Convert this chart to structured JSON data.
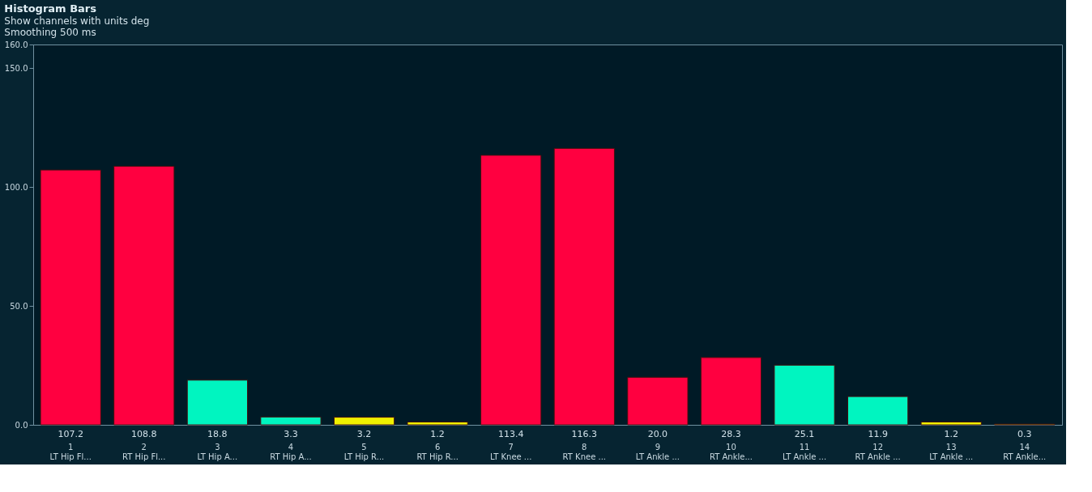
{
  "chart_data": {
    "type": "bar",
    "title": "Histogram Bars",
    "annotations": [
      "Show channels with units deg",
      "Smoothing 500 ms"
    ],
    "categories": [
      "1\nLT Hip Fl...",
      "2\nRT Hip Fl...",
      "3\nLT Hip A...",
      "4\nRT Hip A...",
      "5\nLT Hip R...",
      "6\nRT Hip R...",
      "7\nLT Knee ...",
      "8\nRT Knee ...",
      "9\nLT Ankle ...",
      "10\nRT Ankle...",
      "11\nLT Ankle ...",
      "12\nRT Ankle ...",
      "13\nLT Ankle ...",
      "14\nRT Ankle..."
    ],
    "values": [
      107.2,
      108.8,
      18.8,
      3.3,
      3.2,
      1.2,
      113.4,
      116.3,
      20.0,
      28.3,
      25.1,
      11.9,
      1.2,
      0.3
    ],
    "value_labels": [
      "107.2",
      "108.8",
      "18.8",
      "3.3",
      "3.2",
      "1.2",
      "113.4",
      "116.3",
      "20.0",
      "28.3",
      "25.1",
      "11.9",
      "1.2",
      "0.3"
    ],
    "colors": [
      "#ff0040",
      "#ff0040",
      "#00f5c0",
      "#00f5c0",
      "#f0f000",
      "#f0f000",
      "#ff0040",
      "#ff0040",
      "#ff0040",
      "#ff0040",
      "#00f5c0",
      "#00f5c0",
      "#f0f000",
      "#f0f000"
    ],
    "ylim": [
      0,
      160
    ],
    "yticks": [
      {
        "value": 0,
        "label": "0.0"
      },
      {
        "value": 50,
        "label": "50.0"
      },
      {
        "value": 100,
        "label": "100.0"
      },
      {
        "value": 150,
        "label": "150.0"
      },
      {
        "value": 160,
        "label": "160.0"
      }
    ],
    "grid": false
  }
}
